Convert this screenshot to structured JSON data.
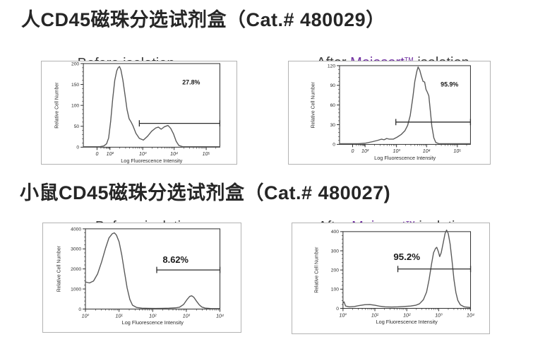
{
  "page": {
    "background": "#ffffff"
  },
  "colors": {
    "brand_purple": "#7030a0",
    "title_text": "#262626",
    "subtitle_text": "#3d3d3d",
    "curve": "#595959",
    "axis": "#2b2b2b",
    "panel_border": "#b3b3b3",
    "percent_text": "#1a1a1a"
  },
  "sections": [
    {
      "title": "人CD45磁珠分选试剂盒（Cat.# 480029）",
      "figures": [
        {
          "subtitle": "Before isolation"
        },
        {
          "subtitle_prefix": "After ",
          "brand": "Mojosort",
          "tm": "TM",
          "subtitle_suffix": " isolation"
        }
      ]
    },
    {
      "title": "小鼠CD45磁珠分选试剂盒（Cat.# 480027)",
      "figures": [
        {
          "subtitle": "Before  isolation"
        },
        {
          "subtitle_prefix": "After ",
          "brand": "Mojosort",
          "tm": "TM",
          "subtitle_suffix": " isolation"
        }
      ]
    }
  ],
  "chart_data": [
    {
      "type": "line",
      "title": "Human CD45 — Before isolation",
      "xlabel": "Log Fluorescence Intensity",
      "ylabel": "Relative Cell Number",
      "ylim": [
        0,
        200
      ],
      "yticks": [
        0,
        50,
        100,
        150,
        200
      ],
      "xticks": [
        {
          "label": "0",
          "pos": 0.1
        },
        {
          "label": "10²",
          "pos": 0.195
        },
        {
          "label": "10³",
          "pos": 0.435
        },
        {
          "label": "10⁴",
          "pos": 0.665
        },
        {
          "label": "10⁵",
          "pos": 0.9
        }
      ],
      "gate": {
        "y": 57,
        "x_start": 0.41,
        "x_end": 1.0,
        "label": "27.8%",
        "label_x": 0.79,
        "label_y": 150
      },
      "points": [
        [
          0,
          1
        ],
        [
          0.12,
          1
        ],
        [
          0.15,
          3
        ],
        [
          0.17,
          8
        ],
        [
          0.185,
          22
        ],
        [
          0.2,
          62
        ],
        [
          0.215,
          115
        ],
        [
          0.23,
          160
        ],
        [
          0.245,
          183
        ],
        [
          0.255,
          190
        ],
        [
          0.265,
          193
        ],
        [
          0.275,
          185
        ],
        [
          0.29,
          160
        ],
        [
          0.305,
          125
        ],
        [
          0.32,
          90
        ],
        [
          0.335,
          68
        ],
        [
          0.35,
          60
        ],
        [
          0.365,
          50
        ],
        [
          0.385,
          33
        ],
        [
          0.41,
          21
        ],
        [
          0.44,
          17
        ],
        [
          0.47,
          26
        ],
        [
          0.5,
          38
        ],
        [
          0.53,
          46
        ],
        [
          0.55,
          48
        ],
        [
          0.57,
          43
        ],
        [
          0.595,
          49
        ],
        [
          0.62,
          52
        ],
        [
          0.64,
          45
        ],
        [
          0.66,
          32
        ],
        [
          0.68,
          14
        ],
        [
          0.7,
          4
        ],
        [
          0.73,
          1
        ],
        [
          1,
          1
        ]
      ]
    },
    {
      "type": "line",
      "title": "Human CD45 — After Mojosort isolation",
      "xlabel": "Log Fluorescence Intensity",
      "ylabel": "Relative Cell Number",
      "ylim": [
        0,
        120
      ],
      "yticks": [
        0,
        30,
        60,
        90,
        120
      ],
      "xticks": [
        {
          "label": "0",
          "pos": 0.1
        },
        {
          "label": "10²",
          "pos": 0.195
        },
        {
          "label": "10³",
          "pos": 0.435
        },
        {
          "label": "10⁴",
          "pos": 0.665
        },
        {
          "label": "10⁵",
          "pos": 0.9
        }
      ],
      "gate": {
        "y": 34,
        "x_start": 0.43,
        "x_end": 1.0,
        "label": "95.9%",
        "label_x": 0.84,
        "label_y": 88
      },
      "points": [
        [
          0,
          1
        ],
        [
          0.14,
          1
        ],
        [
          0.2,
          2
        ],
        [
          0.25,
          4
        ],
        [
          0.29,
          6
        ],
        [
          0.32,
          8
        ],
        [
          0.34,
          7
        ],
        [
          0.36,
          9
        ],
        [
          0.38,
          8
        ],
        [
          0.41,
          8
        ],
        [
          0.44,
          11
        ],
        [
          0.47,
          15
        ],
        [
          0.5,
          21
        ],
        [
          0.52,
          29
        ],
        [
          0.54,
          44
        ],
        [
          0.56,
          72
        ],
        [
          0.575,
          96
        ],
        [
          0.59,
          111
        ],
        [
          0.6,
          118
        ],
        [
          0.613,
          113
        ],
        [
          0.625,
          104
        ],
        [
          0.638,
          96
        ],
        [
          0.65,
          95
        ],
        [
          0.66,
          84
        ],
        [
          0.672,
          79
        ],
        [
          0.682,
          74
        ],
        [
          0.693,
          52
        ],
        [
          0.705,
          28
        ],
        [
          0.72,
          10
        ],
        [
          0.735,
          3
        ],
        [
          0.76,
          1
        ],
        [
          1,
          1
        ]
      ]
    },
    {
      "type": "line",
      "title": "Mouse CD45 — Before isolation",
      "xlabel": "Log Fluorescence Intensity",
      "ylabel": "Relative Cell Number",
      "ylim": [
        0,
        4000
      ],
      "yticks": [
        0,
        1000,
        2000,
        3000,
        4000
      ],
      "xticks": [
        {
          "label": "10⁰",
          "pos": 0.0
        },
        {
          "label": "10¹",
          "pos": 0.25
        },
        {
          "label": "10²",
          "pos": 0.5
        },
        {
          "label": "10³",
          "pos": 0.75
        },
        {
          "label": "10⁴",
          "pos": 1.0
        }
      ],
      "gate": {
        "y": 1950,
        "x_start": 0.53,
        "x_end": 1.0,
        "label": "8.62%",
        "label_x": 0.67,
        "label_y": 2300
      },
      "points": [
        [
          0,
          1350
        ],
        [
          0.03,
          1300
        ],
        [
          0.06,
          1400
        ],
        [
          0.09,
          1750
        ],
        [
          0.12,
          2350
        ],
        [
          0.15,
          3050
        ],
        [
          0.175,
          3550
        ],
        [
          0.2,
          3760
        ],
        [
          0.215,
          3800
        ],
        [
          0.23,
          3690
        ],
        [
          0.25,
          3350
        ],
        [
          0.27,
          2700
        ],
        [
          0.29,
          1850
        ],
        [
          0.31,
          1050
        ],
        [
          0.33,
          480
        ],
        [
          0.35,
          190
        ],
        [
          0.38,
          80
        ],
        [
          0.42,
          45
        ],
        [
          0.47,
          35
        ],
        [
          0.52,
          32
        ],
        [
          0.57,
          35
        ],
        [
          0.62,
          42
        ],
        [
          0.67,
          60
        ],
        [
          0.7,
          95
        ],
        [
          0.73,
          230
        ],
        [
          0.755,
          470
        ],
        [
          0.775,
          630
        ],
        [
          0.79,
          660
        ],
        [
          0.805,
          590
        ],
        [
          0.825,
          400
        ],
        [
          0.845,
          220
        ],
        [
          0.865,
          100
        ],
        [
          0.89,
          50
        ],
        [
          0.93,
          28
        ],
        [
          1,
          22
        ]
      ]
    },
    {
      "type": "line",
      "title": "Mouse CD45 — After Mojosort isolation",
      "xlabel": "Log Fluorescence Intensity",
      "ylabel": "Relative Cell Number",
      "ylim": [
        0,
        400
      ],
      "yticks": [
        0,
        100,
        200,
        300,
        400
      ],
      "xticks": [
        {
          "label": "10⁰",
          "pos": 0.0
        },
        {
          "label": "10¹",
          "pos": 0.25
        },
        {
          "label": "10²",
          "pos": 0.5
        },
        {
          "label": "10³",
          "pos": 0.75
        },
        {
          "label": "10⁴",
          "pos": 1.0
        }
      ],
      "gate": {
        "y": 205,
        "x_start": 0.43,
        "x_end": 1.0,
        "label": "95.2%",
        "label_x": 0.5,
        "label_y": 252
      },
      "points": [
        [
          0,
          28
        ],
        [
          0.008,
          34
        ],
        [
          0.02,
          12
        ],
        [
          0.05,
          8
        ],
        [
          0.09,
          10
        ],
        [
          0.13,
          15
        ],
        [
          0.17,
          19
        ],
        [
          0.21,
          20
        ],
        [
          0.25,
          16
        ],
        [
          0.29,
          11
        ],
        [
          0.33,
          8
        ],
        [
          0.38,
          7
        ],
        [
          0.43,
          8
        ],
        [
          0.48,
          10
        ],
        [
          0.53,
          12
        ],
        [
          0.57,
          16
        ],
        [
          0.6,
          24
        ],
        [
          0.63,
          45
        ],
        [
          0.655,
          85
        ],
        [
          0.675,
          150
        ],
        [
          0.695,
          235
        ],
        [
          0.71,
          290
        ],
        [
          0.725,
          312
        ],
        [
          0.735,
          318
        ],
        [
          0.748,
          295
        ],
        [
          0.758,
          270
        ],
        [
          0.77,
          290
        ],
        [
          0.785,
          340
        ],
        [
          0.8,
          390
        ],
        [
          0.812,
          408
        ],
        [
          0.825,
          390
        ],
        [
          0.84,
          335
        ],
        [
          0.855,
          245
        ],
        [
          0.87,
          150
        ],
        [
          0.885,
          82
        ],
        [
          0.9,
          42
        ],
        [
          0.92,
          18
        ],
        [
          0.95,
          8
        ],
        [
          1,
          4
        ]
      ]
    }
  ]
}
